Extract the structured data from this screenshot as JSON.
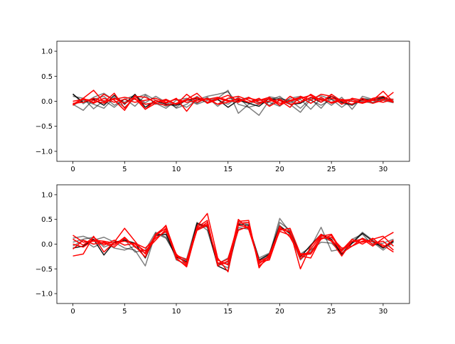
{
  "chart_data": [
    {
      "type": "line",
      "title": "",
      "xlabel": "",
      "ylabel": "",
      "xlim": [
        -1.55,
        32.55
      ],
      "ylim": [
        -1.2,
        1.2
      ],
      "xticks": [
        0,
        5,
        10,
        15,
        20,
        25,
        30
      ],
      "xtick_labels": [
        "0",
        "5",
        "10",
        "15",
        "20",
        "25",
        "30"
      ],
      "yticks": [
        -1.0,
        -0.5,
        0.0,
        0.5,
        1.0
      ],
      "ytick_labels": [
        "−1.0",
        "−0.5",
        "0.0",
        "0.5",
        "1.0"
      ],
      "grid": false,
      "colors": {
        "gray": "#000000",
        "red": "#ff0000"
      },
      "series": [
        {
          "color": "gray",
          "opacity": 0.5,
          "values": [
            0.15,
            -0.05,
            0.08,
            0.16,
            0.02,
            -0.12,
            0.06,
            0.14,
            0.02,
            -0.1,
            -0.04,
            -0.12,
            0.03,
            0.1,
            0.14,
            0.19,
            -0.06,
            -0.12,
            -0.06,
            0.09,
            0.05,
            0.02,
            -0.14,
            0.06,
            0.11,
            0.04,
            -0.04,
            -0.08,
            0.03,
            -0.02,
            0.07,
            -0.02
          ]
        },
        {
          "color": "gray",
          "opacity": 0.5,
          "values": [
            -0.06,
            -0.18,
            0.04,
            0.1,
            -0.08,
            0.04,
            0.12,
            -0.03,
            0.1,
            -0.02,
            -0.12,
            0.04,
            -0.06,
            0.02,
            0.06,
            0.22,
            -0.24,
            -0.06,
            0.04,
            -0.08,
            0.07,
            -0.03,
            0.04,
            -0.16,
            0.06,
            -0.08,
            0.08,
            -0.16,
            0.1,
            0.04,
            0.02,
            -0.03
          ]
        },
        {
          "color": "gray",
          "opacity": 0.5,
          "values": [
            0.1,
            0.06,
            -0.15,
            0.02,
            -0.12,
            0.05,
            -0.1,
            0.12,
            -0.06,
            0.04,
            -0.14,
            -0.06,
            0.1,
            -0.04,
            0.03,
            -0.06,
            0.08,
            -0.12,
            -0.28,
            0.02,
            0.1,
            -0.06,
            -0.22,
            0.04,
            -0.14,
            0.1,
            0.02,
            -0.08,
            0.06,
            0.03,
            0.1,
            -0.02
          ]
        },
        {
          "color": "gray",
          "opacity": 0.5,
          "values": [
            -0.08,
            0.02,
            -0.06,
            -0.14,
            0.08,
            -0.02,
            0.1,
            -0.06,
            -0.04,
            -0.14,
            0.02,
            0.06,
            -0.04,
            0.08,
            -0.1,
            0.06,
            0.02,
            0.08,
            -0.04,
            -0.02,
            -0.1,
            0.06,
            0.1,
            0.02,
            -0.08,
            0.04,
            -0.12,
            0.03,
            0.0,
            -0.04,
            0.06,
            0.04
          ]
        },
        {
          "color": "gray",
          "opacity": 0.9,
          "values": [
            0.14,
            -0.02,
            0.04,
            -0.08,
            0.12,
            -0.06,
            0.14,
            -0.12,
            0.02,
            -0.06,
            -0.08,
            0.02,
            0.06,
            -0.02,
            0.04,
            -0.12,
            0.02,
            -0.04,
            -0.1,
            0.06,
            0.02,
            -0.06,
            -0.04,
            0.08,
            -0.02,
            0.1,
            -0.02,
            -0.06,
            0.04,
            0.02,
            0.08,
            0.0
          ]
        },
        {
          "color": "red",
          "opacity": 1,
          "values": [
            -0.06,
            0.06,
            0.22,
            -0.02,
            0.16,
            -0.14,
            0.1,
            0.08,
            -0.02,
            0.04,
            -0.06,
            0.14,
            -0.02,
            0.06,
            -0.06,
            -0.02,
            0.06,
            -0.02,
            0.06,
            -0.1,
            0.02,
            -0.12,
            0.1,
            0.02,
            0.14,
            0.1,
            -0.06,
            0.06,
            0.02,
            0.02,
            0.2,
            -0.02
          ]
        },
        {
          "color": "red",
          "opacity": 1,
          "values": [
            0.0,
            0.04,
            -0.02,
            0.14,
            0.02,
            -0.18,
            0.12,
            -0.16,
            0.02,
            -0.04,
            0.06,
            -0.2,
            0.06,
            0.04,
            -0.06,
            0.06,
            0.1,
            0.02,
            -0.06,
            0.06,
            -0.04,
            0.0,
            0.06,
            0.12,
            -0.02,
            0.14,
            0.0,
            -0.06,
            0.06,
            -0.04,
            0.02,
            0.18
          ]
        },
        {
          "color": "red",
          "opacity": 1,
          "values": [
            -0.06,
            0.04,
            0.02,
            -0.04,
            0.06,
            -0.04,
            0.06,
            -0.16,
            -0.04,
            -0.08,
            -0.04,
            0.04,
            0.16,
            -0.04,
            0.04,
            0.12,
            0.0,
            0.06,
            0.02,
            0.08,
            -0.08,
            0.1,
            -0.02,
            0.14,
            0.02,
            0.06,
            0.02,
            0.04,
            -0.04,
            0.06,
            0.1,
            -0.02
          ]
        },
        {
          "color": "red",
          "opacity": 1,
          "values": [
            -0.08,
            0.06,
            -0.04,
            0.06,
            -0.02,
            0.04,
            -0.02,
            0.02,
            0.06,
            -0.02,
            0.04,
            -0.02,
            0.02,
            0.04,
            0.08,
            0.02,
            -0.02,
            0.08,
            -0.02,
            0.0,
            0.04,
            -0.06,
            -0.02,
            0.08,
            0.04,
            -0.02,
            0.04,
            0.0,
            -0.04,
            0.02,
            -0.02,
            0.04
          ]
        },
        {
          "color": "red",
          "opacity": 1,
          "values": [
            -0.04,
            -0.02,
            0.06,
            0.0,
            0.04,
            0.08,
            0.04,
            -0.06,
            -0.02,
            0.02,
            -0.06,
            0.02,
            0.08,
            -0.02,
            0.06,
            0.0,
            0.04,
            -0.02,
            0.02,
            0.04,
            -0.08,
            0.02,
            0.08,
            -0.04,
            0.08,
            -0.04,
            0.02,
            0.0,
            -0.02,
            0.04,
            0.04,
            -0.02
          ]
        }
      ]
    },
    {
      "type": "line",
      "title": "",
      "xlabel": "",
      "ylabel": "",
      "xlim": [
        -1.55,
        32.55
      ],
      "ylim": [
        -1.2,
        1.2
      ],
      "xticks": [
        0,
        5,
        10,
        15,
        20,
        25,
        30
      ],
      "xtick_labels": [
        "0",
        "5",
        "10",
        "15",
        "20",
        "25",
        "30"
      ],
      "yticks": [
        -1.0,
        -0.5,
        0.0,
        0.5,
        1.0
      ],
      "ytick_labels": [
        "−1.0",
        "−0.5",
        "0.0",
        "0.5",
        "1.0"
      ],
      "grid": false,
      "colors": {
        "gray": "#000000",
        "red": "#ff0000"
      },
      "series": [
        {
          "color": "gray",
          "opacity": 0.5,
          "values": [
            0.12,
            0.16,
            0.08,
            0.14,
            0.04,
            -0.08,
            -0.12,
            -0.44,
            0.22,
            0.12,
            -0.24,
            -0.3,
            0.44,
            0.28,
            -0.4,
            -0.28,
            0.34,
            0.3,
            -0.34,
            -0.22,
            0.52,
            0.24,
            -0.2,
            -0.06,
            0.34,
            -0.14,
            -0.1,
            0.04,
            0.24,
            0.08,
            -0.06,
            0.06
          ]
        },
        {
          "color": "gray",
          "opacity": 0.5,
          "values": [
            -0.04,
            0.08,
            -0.06,
            0.04,
            -0.08,
            -0.12,
            -0.04,
            -0.26,
            0.16,
            0.24,
            -0.32,
            -0.4,
            0.4,
            0.34,
            -0.38,
            -0.48,
            0.3,
            0.34,
            -0.28,
            -0.18,
            0.38,
            0.2,
            -0.32,
            -0.12,
            0.04,
            0.02,
            -0.18,
            0.02,
            0.12,
            0.04,
            -0.12,
            0.04
          ]
        },
        {
          "color": "gray",
          "opacity": 0.5,
          "values": [
            0.04,
            0.1,
            0.14,
            -0.06,
            0.02,
            0.1,
            -0.16,
            -0.12,
            0.24,
            0.14,
            -0.26,
            -0.34,
            0.3,
            0.4,
            -0.42,
            -0.36,
            0.44,
            0.4,
            -0.38,
            -0.26,
            0.44,
            0.28,
            -0.24,
            -0.16,
            0.14,
            0.06,
            -0.22,
            0.1,
            0.2,
            -0.02,
            0.02,
            0.1
          ]
        },
        {
          "color": "gray",
          "opacity": 0.9,
          "values": [
            -0.08,
            -0.04,
            0.1,
            -0.22,
            0.04,
            0.08,
            0.02,
            -0.28,
            0.18,
            0.2,
            -0.26,
            -0.36,
            0.42,
            0.36,
            -0.44,
            -0.54,
            0.4,
            0.38,
            -0.32,
            -0.2,
            0.36,
            0.22,
            -0.26,
            -0.02,
            0.2,
            0.1,
            -0.2,
            0.02,
            0.22,
            0.06,
            -0.08,
            0.06
          ]
        },
        {
          "color": "red",
          "opacity": 1,
          "values": [
            -0.24,
            -0.2,
            0.16,
            -0.16,
            0.04,
            0.32,
            0.06,
            -0.2,
            0.16,
            0.38,
            -0.3,
            -0.44,
            0.36,
            0.62,
            -0.28,
            -0.56,
            0.46,
            0.48,
            -0.48,
            -0.2,
            0.3,
            0.26,
            -0.5,
            -0.04,
            0.2,
            0.06,
            -0.24,
            0.06,
            0.1,
            -0.04,
            0.12,
            0.24
          ]
        },
        {
          "color": "red",
          "opacity": 1,
          "values": [
            0.18,
            0.04,
            0.06,
            0.02,
            -0.06,
            0.12,
            -0.04,
            -0.26,
            0.18,
            0.32,
            -0.24,
            -0.38,
            0.28,
            0.38,
            -0.32,
            -0.42,
            0.5,
            0.3,
            -0.36,
            -0.32,
            0.28,
            0.32,
            -0.2,
            -0.18,
            0.16,
            0.2,
            -0.14,
            0.06,
            0.04,
            0.1,
            0.16,
            -0.04
          ]
        },
        {
          "color": "red",
          "opacity": 1,
          "values": [
            0.1,
            -0.02,
            0.14,
            -0.02,
            0.08,
            -0.02,
            0.02,
            -0.08,
            0.12,
            0.26,
            -0.2,
            -0.42,
            0.3,
            0.44,
            -0.4,
            -0.3,
            0.42,
            0.44,
            -0.44,
            -0.28,
            0.36,
            0.14,
            -0.24,
            -0.28,
            0.12,
            0.14,
            -0.08,
            -0.04,
            0.12,
            0.0,
            0.06,
            -0.12
          ]
        },
        {
          "color": "red",
          "opacity": 1,
          "values": [
            -0.1,
            0.08,
            0.0,
            0.04,
            -0.02,
            0.14,
            -0.06,
            -0.18,
            0.2,
            0.36,
            -0.22,
            -0.32,
            0.34,
            0.48,
            -0.44,
            -0.34,
            0.28,
            0.36,
            -0.34,
            -0.26,
            0.32,
            0.24,
            -0.3,
            -0.1,
            0.18,
            0.08,
            -0.12,
            0.1,
            0.0,
            0.12,
            -0.06,
            0.08
          ]
        },
        {
          "color": "red",
          "opacity": 1,
          "values": [
            0.0,
            -0.06,
            0.08,
            0.06,
            0.02,
            0.06,
            0.0,
            -0.14,
            0.08,
            0.3,
            -0.28,
            -0.46,
            0.32,
            0.4,
            -0.38,
            -0.4,
            0.38,
            0.34,
            -0.4,
            -0.24,
            0.26,
            0.18,
            -0.22,
            -0.2,
            0.1,
            0.18,
            -0.18,
            -0.04,
            0.06,
            0.06,
            -0.02,
            -0.16
          ]
        }
      ]
    }
  ]
}
